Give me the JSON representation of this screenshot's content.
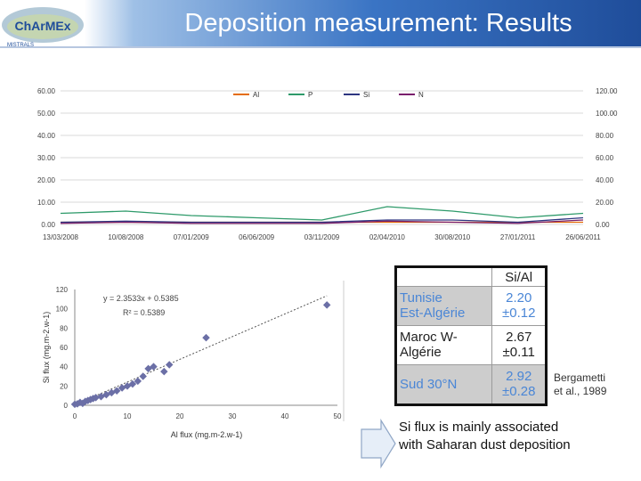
{
  "header": {
    "title": "Deposition measurement: Results",
    "logo_text": "ChArMEx",
    "logo_subtext": "MISTRALS"
  },
  "chart_data": [
    {
      "type": "line",
      "x": [
        "13/03/2008",
        "10/08/2008",
        "07/01/2009",
        "06/06/2009",
        "03/11/2009",
        "02/04/2010",
        "30/08/2010",
        "27/01/2011",
        "26/06/2011"
      ],
      "series": [
        {
          "name": "Al",
          "axis": "left",
          "color": "#e46c0a",
          "values": [
            1,
            1,
            1,
            1,
            1,
            1,
            1,
            1,
            1
          ]
        },
        {
          "name": "P",
          "axis": "left",
          "color": "#2e9a6a",
          "values": [
            5,
            6,
            4,
            3,
            2,
            8,
            6,
            3,
            5
          ]
        },
        {
          "name": "Si",
          "axis": "right",
          "color": "#2d3580",
          "values": [
            2,
            3,
            2,
            2,
            2,
            4,
            4,
            2,
            6
          ]
        },
        {
          "name": "N",
          "axis": "right",
          "color": "#7a1f6c",
          "values": [
            1,
            2,
            1,
            1,
            1,
            3,
            2,
            1,
            4
          ]
        }
      ],
      "y_ticks_left": [
        "0.00",
        "10.00",
        "20.00",
        "30.00",
        "40.00",
        "50.00",
        "60.00"
      ],
      "y_ticks_right": [
        "0.00",
        "20.00",
        "40.00",
        "60.00",
        "80.00",
        "100.00",
        "120.00"
      ],
      "ylim_left": [
        0,
        60
      ],
      "ylim_right": [
        0,
        120
      ],
      "legend": "top",
      "grid": true
    },
    {
      "type": "scatter",
      "xlabel": "Al flux (mg.m-2.w-1)",
      "ylabel": "Si flux (mg.m-2.w-1)",
      "x_ticks": [
        "0",
        "10",
        "20",
        "30",
        "40",
        "50"
      ],
      "y_ticks": [
        "0",
        "20",
        "40",
        "60",
        "80",
        "100",
        "120"
      ],
      "xlim": [
        0,
        50
      ],
      "ylim": [
        0,
        120
      ],
      "equation": "y = 2.3533x + 0.5385",
      "r2": "R² = 0.5389",
      "points": [
        [
          0,
          1
        ],
        [
          0.5,
          1.5
        ],
        [
          1,
          3
        ],
        [
          1.5,
          2
        ],
        [
          2,
          4
        ],
        [
          2.5,
          5
        ],
        [
          3,
          6
        ],
        [
          3.5,
          7
        ],
        [
          4,
          8
        ],
        [
          5,
          9
        ],
        [
          6,
          11
        ],
        [
          7,
          13
        ],
        [
          8,
          15
        ],
        [
          9,
          18
        ],
        [
          10,
          20
        ],
        [
          11,
          22
        ],
        [
          12,
          25
        ],
        [
          13,
          30
        ],
        [
          14,
          38
        ],
        [
          15,
          40
        ],
        [
          17,
          35
        ],
        [
          18,
          42
        ],
        [
          25,
          70
        ],
        [
          48,
          104
        ]
      ]
    }
  ],
  "table": {
    "header": "Si/Al",
    "rows": [
      {
        "region": "Tunisie",
        "value": "2.20"
      },
      {
        "region": "Est-Algérie",
        "value": "±0.12"
      },
      {
        "region": "Maroc W-",
        "value": "2.67"
      },
      {
        "region": "Algérie",
        "value": "±0.11"
      },
      {
        "region": "Sud 30°N",
        "value": "2.92"
      },
      {
        "region": "",
        "value": "±0.28"
      }
    ]
  },
  "reference": {
    "line1": "Bergametti",
    "line2": "et al., 1989"
  },
  "conclusion": {
    "line1": "Si flux is mainly associated",
    "line2": "with Saharan dust deposition"
  }
}
